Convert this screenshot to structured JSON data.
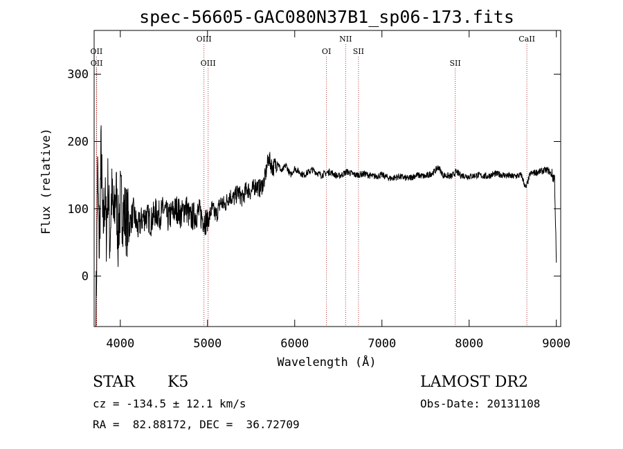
{
  "chart_data": {
    "type": "line",
    "title": "spec-56605-GAC080N37B1_sp06-173.fits",
    "xlabel": "Wavelength (Å)",
    "ylabel": "Flux (relative)",
    "xlim": [
      3700,
      9050
    ],
    "ylim": [
      -75,
      365
    ],
    "x_ticks": [
      4000,
      5000,
      6000,
      7000,
      8000,
      9000
    ],
    "y_ticks": [
      0,
      100,
      200,
      300
    ],
    "grid": false,
    "series": [
      {
        "x": [
          3720,
          3740,
          3760,
          3780,
          3800,
          3820,
          3840,
          3860,
          3880,
          3900,
          3925,
          3950,
          3975,
          4000,
          4050,
          4100,
          4150,
          4200,
          4250,
          4300,
          4350,
          4400,
          4450,
          4500,
          4550,
          4600,
          4650,
          4700,
          4750,
          4800,
          4850,
          4900,
          4950,
          5000,
          5050,
          5100,
          5150,
          5200,
          5250,
          5300,
          5350,
          5400,
          5450,
          5500,
          5550,
          5600,
          5650,
          5700,
          5750,
          5800,
          5850,
          5900,
          5950,
          6000,
          6100,
          6200,
          6300,
          6400,
          6500,
          6600,
          6700,
          6800,
          6900,
          7000,
          7100,
          7200,
          7300,
          7400,
          7500,
          7600,
          7650,
          7700,
          7800,
          7850,
          7900,
          8000,
          8100,
          8200,
          8300,
          8400,
          8500,
          8600,
          8650,
          8700,
          8800,
          8900,
          8950,
          8980,
          9000
        ],
        "y": [
          -70,
          150,
          40,
          190,
          60,
          120,
          70,
          140,
          50,
          120,
          80,
          130,
          60,
          110,
          90,
          75,
          95,
          70,
          85,
          90,
          80,
          95,
          90,
          100,
          85,
          95,
          100,
          90,
          105,
          85,
          90,
          95,
          85,
          80,
          100,
          90,
          110,
          105,
          120,
          115,
          125,
          115,
          130,
          125,
          135,
          130,
          140,
          175,
          160,
          170,
          155,
          165,
          150,
          160,
          150,
          158,
          150,
          155,
          148,
          155,
          150,
          152,
          148,
          150,
          145,
          148,
          145,
          150,
          148,
          155,
          162,
          150,
          148,
          155,
          150,
          148,
          150,
          148,
          152,
          150,
          148,
          150,
          130,
          152,
          155,
          158,
          150,
          145,
          20
        ]
      }
    ],
    "line_markers": [
      {
        "label": "OII",
        "x": 3727,
        "row": 1
      },
      {
        "label": "OII",
        "x": 3729,
        "row": 2
      },
      {
        "label": "OIII",
        "x": 4959,
        "row": 0
      },
      {
        "label": "OIII",
        "x": 5007,
        "row": 2
      },
      {
        "label": "OI",
        "x": 6364,
        "row": 1
      },
      {
        "label": "NII",
        "x": 6584,
        "row": 0
      },
      {
        "label": "SII",
        "x": 6731,
        "row": 1
      },
      {
        "label": "SII",
        "x": 7840,
        "row": 2
      },
      {
        "label": "CaII",
        "x": 8662,
        "row": 0
      }
    ]
  },
  "info": {
    "class_label": "STAR",
    "subclass_label": "K5",
    "survey_label": "LAMOST DR2",
    "cz_text": "cz = -134.5 ± 12.1 km/s",
    "radec_text": "RA =  82.88172, DEC =  36.72709",
    "obsdate_text": "Obs-Date: 20131108"
  }
}
